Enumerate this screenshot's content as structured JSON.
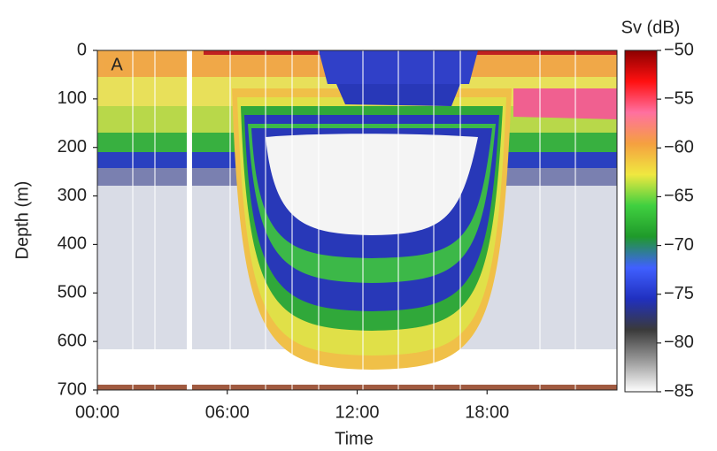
{
  "chart_data": {
    "type": "heatmap",
    "panel_label": "A",
    "x_label": "Time",
    "y_label": "Depth (m)",
    "colorbar_label": "Sv (dB)",
    "xlim": [
      0,
      24
    ],
    "xticks": [
      {
        "value": 0,
        "label": "00:00"
      },
      {
        "value": 6,
        "label": "06:00"
      },
      {
        "value": 12,
        "label": "12:00"
      },
      {
        "value": 18,
        "label": "18:00"
      }
    ],
    "ylim": [
      0,
      700
    ],
    "y_inverted": true,
    "yticks": [
      0,
      100,
      200,
      300,
      400,
      500,
      600,
      700
    ],
    "clim": [
      -85,
      -50
    ],
    "cticks": [
      {
        "value": -85,
        "label": "−85"
      },
      {
        "value": -80,
        "label": "−80"
      },
      {
        "value": -75,
        "label": "−75"
      },
      {
        "value": -70,
        "label": "−70"
      },
      {
        "value": -65,
        "label": "−65"
      },
      {
        "value": -60,
        "label": "−60"
      },
      {
        "value": -55,
        "label": "−55"
      },
      {
        "value": -50,
        "label": "−50"
      }
    ],
    "colormap": [
      "#ffffff",
      "#9a9a9a",
      "#3a3a3a",
      "#2030c0",
      "#4060ff",
      "#1f9a2a",
      "#40d040",
      "#f0e840",
      "#f5a040",
      "#ff70a0",
      "#ff1010",
      "#8b0000"
    ]
  }
}
